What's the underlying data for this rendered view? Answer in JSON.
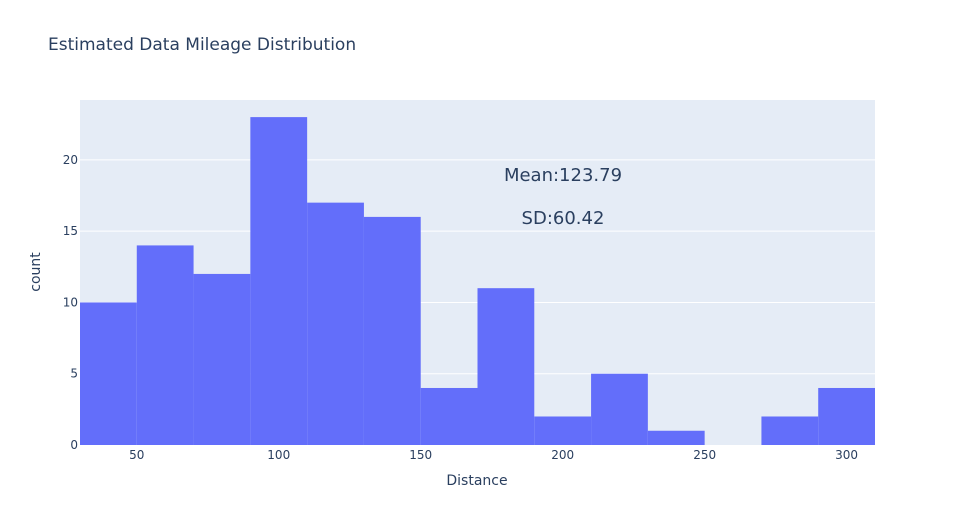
{
  "chart_data": {
    "type": "bar",
    "title": "Estimated Data Mileage Distribution",
    "xlabel": "Distance",
    "ylabel": "count",
    "bin_edges": [
      30,
      50,
      70,
      90,
      110,
      130,
      150,
      170,
      190,
      210,
      230,
      250,
      270,
      290,
      310
    ],
    "values": [
      10,
      14,
      12,
      23,
      17,
      16,
      4,
      11,
      2,
      5,
      1,
      0,
      2,
      4
    ],
    "xlim": [
      30,
      310
    ],
    "ylim": [
      0,
      24.2
    ],
    "x_ticks": [
      50,
      100,
      150,
      200,
      250,
      300
    ],
    "y_ticks": [
      0,
      5,
      10,
      15,
      20
    ],
    "grid": true,
    "annotations": [
      "Mean:123.79",
      "SD:60.42"
    ],
    "colors": {
      "bar": "#636efa",
      "plot_bg": "#e5ecf6",
      "grid": "#ffffff",
      "text": "#2a3f5f",
      "paper_bg": "#ffffff"
    }
  }
}
